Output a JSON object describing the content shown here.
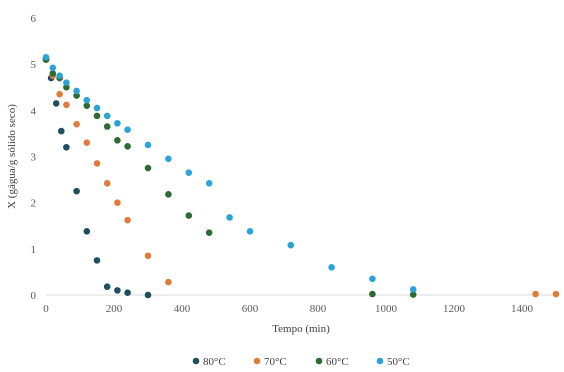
{
  "chart_data": {
    "type": "scatter",
    "title": "",
    "xlabel": "Tempo (min)",
    "ylabel": "X (gágua/g sólido seco)",
    "xlim": [
      0,
      1500
    ],
    "ylim": [
      0,
      6
    ],
    "xticks": [
      0,
      200,
      400,
      600,
      800,
      1000,
      1200,
      1400
    ],
    "yticks": [
      0,
      1,
      2,
      3,
      4,
      5,
      6
    ],
    "grid": false,
    "legend_position": "bottom",
    "series": [
      {
        "name": "80°C",
        "color": "#1f4e5f",
        "points": [
          [
            0,
            5.1
          ],
          [
            15,
            4.7
          ],
          [
            30,
            4.15
          ],
          [
            45,
            3.55
          ],
          [
            60,
            3.2
          ],
          [
            90,
            2.25
          ],
          [
            120,
            1.38
          ],
          [
            150,
            0.75
          ],
          [
            180,
            0.18
          ],
          [
            210,
            0.1
          ],
          [
            240,
            0.05
          ],
          [
            300,
            0.0
          ]
        ]
      },
      {
        "name": "70°C",
        "color": "#e07b39",
        "points": [
          [
            0,
            5.1
          ],
          [
            20,
            4.75
          ],
          [
            40,
            4.35
          ],
          [
            60,
            4.12
          ],
          [
            90,
            3.7
          ],
          [
            120,
            3.3
          ],
          [
            150,
            2.85
          ],
          [
            180,
            2.42
          ],
          [
            210,
            2.0
          ],
          [
            240,
            1.62
          ],
          [
            300,
            0.85
          ],
          [
            360,
            0.28
          ],
          [
            1440,
            0.02
          ],
          [
            1500,
            0.02
          ]
        ]
      },
      {
        "name": "60°C",
        "color": "#2e6b30",
        "points": [
          [
            0,
            5.1
          ],
          [
            20,
            4.8
          ],
          [
            40,
            4.7
          ],
          [
            60,
            4.5
          ],
          [
            90,
            4.32
          ],
          [
            120,
            4.1
          ],
          [
            150,
            3.88
          ],
          [
            180,
            3.65
          ],
          [
            210,
            3.35
          ],
          [
            240,
            3.22
          ],
          [
            300,
            2.75
          ],
          [
            360,
            2.18
          ],
          [
            420,
            1.72
          ],
          [
            480,
            1.35
          ],
          [
            960,
            0.02
          ],
          [
            1080,
            0.01
          ]
        ]
      },
      {
        "name": "50°C",
        "color": "#2aa3d6",
        "points": [
          [
            0,
            5.15
          ],
          [
            20,
            4.92
          ],
          [
            40,
            4.75
          ],
          [
            60,
            4.6
          ],
          [
            90,
            4.42
          ],
          [
            120,
            4.22
          ],
          [
            150,
            4.05
          ],
          [
            180,
            3.88
          ],
          [
            210,
            3.72
          ],
          [
            240,
            3.58
          ],
          [
            300,
            3.25
          ],
          [
            360,
            2.95
          ],
          [
            420,
            2.65
          ],
          [
            480,
            2.42
          ],
          [
            540,
            1.68
          ],
          [
            600,
            1.38
          ],
          [
            720,
            1.08
          ],
          [
            840,
            0.6
          ],
          [
            960,
            0.35
          ],
          [
            1080,
            0.12
          ]
        ]
      }
    ]
  }
}
